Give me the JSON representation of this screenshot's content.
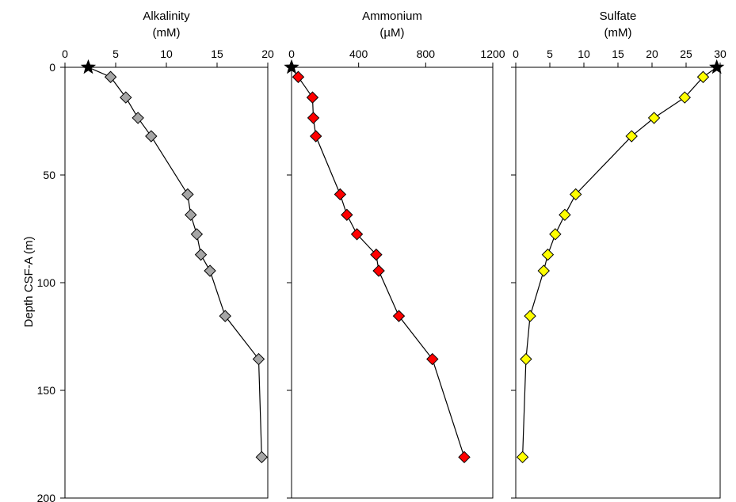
{
  "y_axis": {
    "label": "Depth CSF-A (m)",
    "ylim": [
      0,
      200
    ],
    "inverted": true,
    "ticks": [
      0,
      50,
      100,
      150,
      200
    ]
  },
  "chart_data": [
    {
      "type": "scatter",
      "title_line1": "Alkalinity",
      "title_line2": "(mM)",
      "xlim": [
        0,
        20
      ],
      "x_ticks": [
        0,
        5,
        10,
        15,
        20
      ],
      "marker": "diamond",
      "marker_color": "#a6a6a6",
      "line_color": "#000000",
      "surface_marker": "star",
      "surface": {
        "x": 2.3,
        "depth": 0
      },
      "points": [
        {
          "x": 4.5,
          "depth": 4.5
        },
        {
          "x": 6.0,
          "depth": 14
        },
        {
          "x": 7.2,
          "depth": 23.5
        },
        {
          "x": 8.5,
          "depth": 32
        },
        {
          "x": 12.1,
          "depth": 59
        },
        {
          "x": 12.4,
          "depth": 68.5
        },
        {
          "x": 13.0,
          "depth": 77.5
        },
        {
          "x": 13.4,
          "depth": 87
        },
        {
          "x": 14.3,
          "depth": 94.5
        },
        {
          "x": 15.8,
          "depth": 115.5
        },
        {
          "x": 19.1,
          "depth": 135.5
        },
        {
          "x": 19.4,
          "depth": 181
        }
      ]
    },
    {
      "type": "scatter",
      "title_line1": "Ammonium",
      "title_line2": "(µM)",
      "xlim": [
        0,
        1200
      ],
      "x_ticks": [
        0,
        400,
        800,
        1200
      ],
      "marker": "diamond",
      "marker_color": "#ff0000",
      "line_color": "#000000",
      "surface_marker": "star",
      "surface": {
        "x": 0,
        "depth": 0
      },
      "points": [
        {
          "x": 40,
          "depth": 4.5
        },
        {
          "x": 125,
          "depth": 14
        },
        {
          "x": 130,
          "depth": 23.5
        },
        {
          "x": 145,
          "depth": 32
        },
        {
          "x": 290,
          "depth": 59
        },
        {
          "x": 330,
          "depth": 68.5
        },
        {
          "x": 390,
          "depth": 77.5
        },
        {
          "x": 505,
          "depth": 87
        },
        {
          "x": 520,
          "depth": 94.5
        },
        {
          "x": 640,
          "depth": 115.5
        },
        {
          "x": 840,
          "depth": 135.5
        },
        {
          "x": 1030,
          "depth": 181
        }
      ]
    },
    {
      "type": "scatter",
      "title_line1": "Sulfate",
      "title_line2": "(mM)",
      "xlim": [
        0,
        30
      ],
      "x_ticks": [
        0,
        5,
        10,
        15,
        20,
        25,
        30
      ],
      "marker": "diamond",
      "marker_color": "#ffff00",
      "line_color": "#000000",
      "surface_marker": "star",
      "surface": {
        "x": 29.5,
        "depth": 0
      },
      "points": [
        {
          "x": 27.5,
          "depth": 4.5
        },
        {
          "x": 24.8,
          "depth": 14
        },
        {
          "x": 20.3,
          "depth": 23.5
        },
        {
          "x": 17.0,
          "depth": 32
        },
        {
          "x": 8.8,
          "depth": 59
        },
        {
          "x": 7.2,
          "depth": 68.5
        },
        {
          "x": 5.8,
          "depth": 77.5
        },
        {
          "x": 4.7,
          "depth": 87
        },
        {
          "x": 4.1,
          "depth": 94.5
        },
        {
          "x": 2.1,
          "depth": 115.5
        },
        {
          "x": 1.5,
          "depth": 135.5
        },
        {
          "x": 1.0,
          "depth": 181
        }
      ]
    }
  ]
}
